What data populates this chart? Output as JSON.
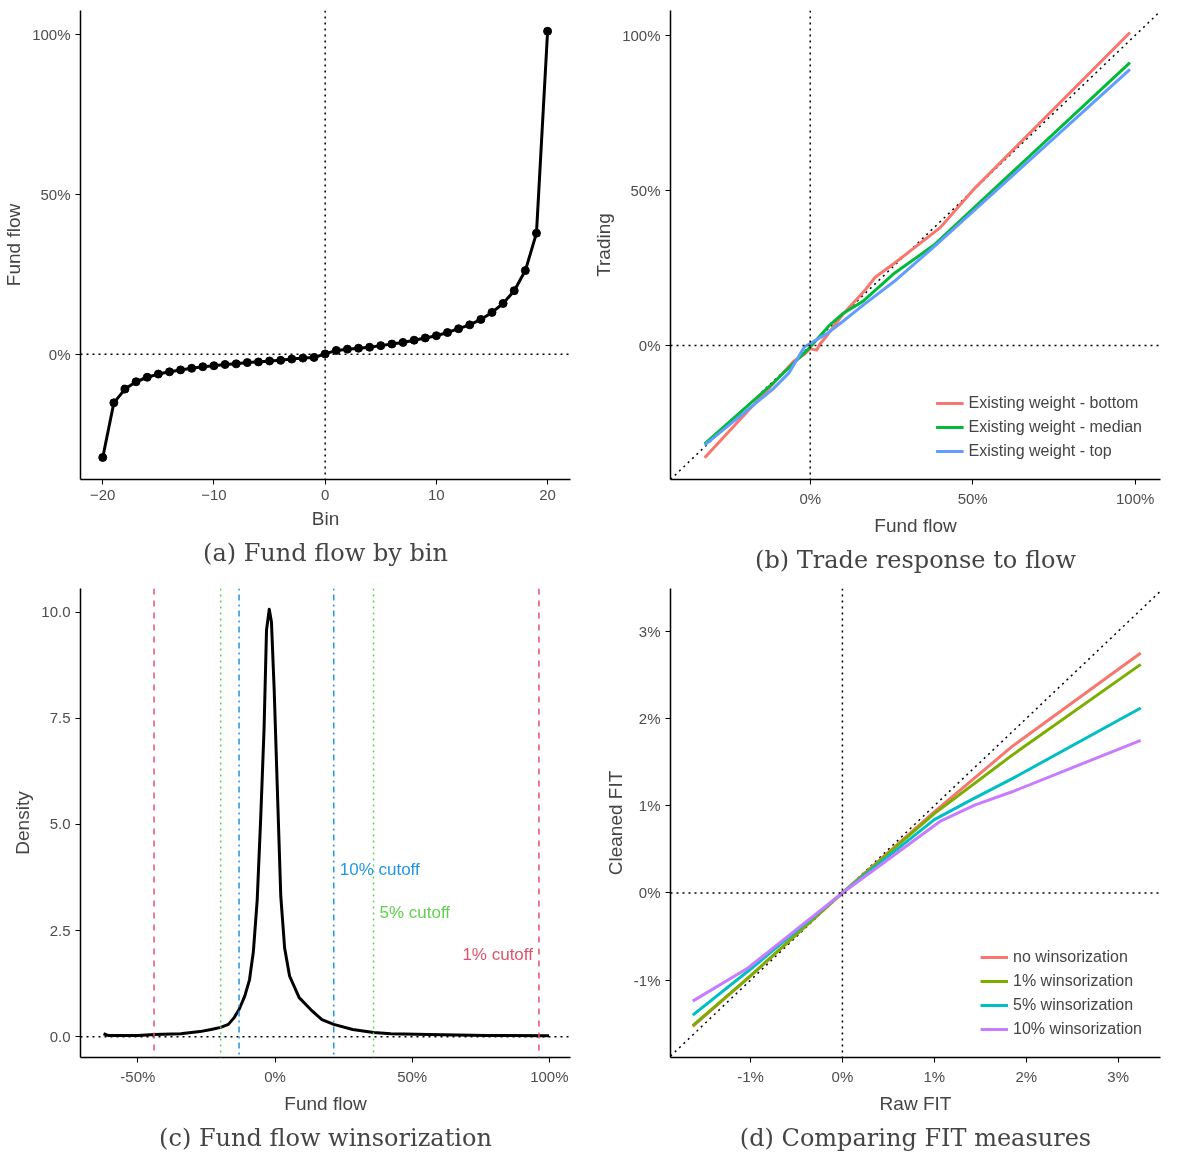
{
  "chart_data": [
    {
      "type": "line",
      "title": "(a) Fund flow by bin",
      "xlabel": "Bin",
      "ylabel": "Fund flow",
      "marker": "circle",
      "grid": false,
      "xlim": [
        -22,
        22.06
      ],
      "ylim": [
        -39.2,
        107.6
      ],
      "xticks": [
        -20,
        -10,
        0,
        10,
        20
      ],
      "yticks": [
        {
          "value": 0,
          "label": "0%"
        },
        {
          "value": 50,
          "label": "50%"
        },
        {
          "value": 100,
          "label": "100%"
        }
      ],
      "x": [
        -20,
        -19,
        -18,
        -17,
        -16,
        -15,
        -14,
        -13,
        -12,
        -11,
        -10,
        -9,
        -8,
        -7,
        -6,
        -5,
        -4,
        -3,
        -2,
        -1,
        0,
        1,
        2,
        3,
        4,
        5,
        6,
        7,
        8,
        9,
        10,
        11,
        12,
        13,
        14,
        15,
        16,
        17,
        18,
        19,
        20
      ],
      "series": [
        {
          "color": "#000000",
          "values": [
            -32.3,
            -15.2,
            -10.9,
            -8.6,
            -7.2,
            -6.2,
            -5.5,
            -4.9,
            -4.4,
            -3.9,
            -3.6,
            -3.2,
            -3.0,
            -2.6,
            -2.4,
            -2.1,
            -1.9,
            -1.5,
            -1.2,
            -1.0,
            0.1,
            1.2,
            1.6,
            1.9,
            2.2,
            2.7,
            3.2,
            3.7,
            4.4,
            5.1,
            5.8,
            6.8,
            8.0,
            9.2,
            10.9,
            13.1,
            15.9,
            19.9,
            26.2,
            37.9,
            101.1
          ]
        }
      ],
      "ref_lines": [
        {
          "axis": "x",
          "value": 0,
          "color": "#000000",
          "line_style": "dotted"
        },
        {
          "axis": "y",
          "value": 0,
          "color": "#000000",
          "line_style": "dotted"
        }
      ]
    },
    {
      "type": "line",
      "title": "(b) Trade response to flow",
      "xlabel": "Fund flow",
      "ylabel": "Trading",
      "grid": false,
      "legend": "bottom right",
      "xlim": [
        -43,
        107.8
      ],
      "ylim": [
        -43.2,
        108
      ],
      "xticks": [
        {
          "value": 0,
          "label": "0%"
        },
        {
          "value": 50,
          "label": "50%"
        },
        {
          "value": 100,
          "label": "100%"
        }
      ],
      "yticks": [
        {
          "value": 0,
          "label": "0%"
        },
        {
          "value": 50,
          "label": "50%"
        },
        {
          "value": 100,
          "label": "100%"
        }
      ],
      "series": [
        {
          "color": "#000000",
          "line_style": "dotted",
          "x": [
            -43,
            107.8
          ],
          "values": [
            -43.2,
            107.8
          ]
        },
        {
          "name": "Existing weight - bottom",
          "color": "#f8766d",
          "x": [
            -32.5,
            -12,
            -5,
            -2,
            0,
            2,
            3,
            5,
            10,
            17,
            20,
            25.9,
            40,
            50,
            98.4
          ],
          "values": [
            -36.2,
            -13,
            -5,
            -3,
            -1,
            -1.5,
            0.5,
            3,
            10,
            18,
            22,
            26.5,
            38,
            50,
            100.9
          ]
        },
        {
          "name": "Existing weight - median",
          "color": "#00ba38",
          "x": [
            -32.5,
            -11.4,
            0,
            6,
            10.2,
            16.3,
            25.9,
            38,
            98.4
          ],
          "values": [
            -31.7,
            -12.1,
            -0.5,
            6.6,
            10.4,
            14.3,
            23.3,
            32.3,
            91.2
          ]
        },
        {
          "name": "Existing weight - top",
          "color": "#619cff",
          "x": [
            -32.5,
            -17.5,
            -11.4,
            -6.6,
            -1.8,
            5.4,
            10.2,
            16.3,
            25.9,
            37.3,
            98.4
          ],
          "values": [
            -32.1,
            -19.2,
            -14.0,
            -8.9,
            -0.5,
            4.0,
            7.9,
            13.0,
            20.7,
            31.1,
            89.0
          ]
        }
      ],
      "ref_lines": [
        {
          "axis": "x",
          "value": 0,
          "color": "#000000",
          "line_style": "dotted"
        },
        {
          "axis": "y",
          "value": 0,
          "color": "#000000",
          "line_style": "dotted"
        }
      ]
    },
    {
      "type": "line",
      "title": "(c) Fund flow winsorization",
      "xlabel": "Fund flow",
      "ylabel": "Density",
      "grid": false,
      "xlim": [
        -70.9,
        107.7
      ],
      "ylim": [
        -0.49,
        10.56
      ],
      "xticks": [
        {
          "value": -50,
          "label": "-50%"
        },
        {
          "value": 0,
          "label": "0%"
        },
        {
          "value": 50,
          "label": "50%"
        },
        {
          "value": 100,
          "label": "100%"
        }
      ],
      "yticks": [
        {
          "value": 0,
          "label": "0.0"
        },
        {
          "value": 2.5,
          "label": "2.5"
        },
        {
          "value": 5,
          "label": "5.0"
        },
        {
          "value": 7.5,
          "label": "7.5"
        },
        {
          "value": 10,
          "label": "10.0"
        }
      ],
      "series": [
        {
          "color": "#000000",
          "x": [
            -62.5,
            -60.9,
            -50,
            -44,
            -34.4,
            -27.4,
            -23.3,
            -19.8,
            -17,
            -14.9,
            -13.1,
            -11,
            -9.3,
            -7.9,
            -6.5,
            -5.2,
            -4.0,
            -3.1,
            -2.1,
            -1.3,
            -0.3,
            0.8,
            2.1,
            3.5,
            5.3,
            8.8,
            13.0,
            17.1,
            21.4,
            28.3,
            35.9,
            42.2,
            56.1,
            77.0,
            99.9
          ],
          "values": [
            0.07,
            0.03,
            0.03,
            0.05,
            0.07,
            0.12,
            0.17,
            0.22,
            0.29,
            0.45,
            0.64,
            0.96,
            1.34,
            2.0,
            3.21,
            5.18,
            7.24,
            9.58,
            10.07,
            9.77,
            8.17,
            5.93,
            3.31,
            2.09,
            1.43,
            0.92,
            0.64,
            0.4,
            0.29,
            0.17,
            0.1,
            0.07,
            0.05,
            0.03,
            0.02
          ]
        }
      ],
      "ref_lines": [
        {
          "axis": "y",
          "value": 0,
          "color": "#000000",
          "line_style": "dotted"
        },
        {
          "axis": "x",
          "value": -44.1,
          "color": "#df536b",
          "line_style": "dashed"
        },
        {
          "axis": "x",
          "value": 96.2,
          "color": "#df536b",
          "line_style": "dashed",
          "label": "1% cutoff"
        },
        {
          "axis": "x",
          "value": -19.8,
          "color": "#61d04f",
          "line_style": "dotted"
        },
        {
          "axis": "x",
          "value": 35.9,
          "color": "#61d04f",
          "line_style": "dotted",
          "label": "5% cutoff"
        },
        {
          "axis": "x",
          "value": -13.1,
          "color": "#2297e6",
          "line_style": "dotdash"
        },
        {
          "axis": "x",
          "value": 21.4,
          "color": "#2297e6",
          "line_style": "dotdash",
          "label": "10% cutoff"
        }
      ]
    },
    {
      "type": "line",
      "title": "(d) Comparing FIT measures",
      "xlabel": "Raw FIT",
      "ylabel": "Cleaned FIT",
      "grid": false,
      "legend": "bottom right",
      "xlim": [
        -1.87,
        3.46
      ],
      "ylim": [
        -1.886,
        3.49
      ],
      "xticks": [
        {
          "value": -1,
          "label": "-1%"
        },
        {
          "value": 0,
          "label": "0%"
        },
        {
          "value": 1,
          "label": "1%"
        },
        {
          "value": 2,
          "label": "2%"
        },
        {
          "value": 3,
          "label": "3%"
        }
      ],
      "yticks": [
        {
          "value": -1,
          "label": "-1%"
        },
        {
          "value": 0,
          "label": "0%"
        },
        {
          "value": 1,
          "label": "1%"
        },
        {
          "value": 2,
          "label": "2%"
        },
        {
          "value": 3,
          "label": "3%"
        }
      ],
      "series": [
        {
          "color": "#000000",
          "line_style": "dotted",
          "x": [
            -1.87,
            3.46
          ],
          "values": [
            -1.87,
            3.46
          ]
        },
        {
          "name": "no winsorization",
          "color": "#f8766d",
          "x": [
            -1.628,
            -1,
            0,
            1,
            1.847,
            3.245
          ],
          "values": [
            -1.53,
            -0.95,
            0,
            0.93,
            1.68,
            2.75
          ]
        },
        {
          "name": "1% winsorization",
          "color": "#7cae00",
          "x": [
            -1.628,
            -1,
            0,
            1,
            1.847,
            3.245
          ],
          "values": [
            -1.52,
            -0.95,
            0,
            0.91,
            1.58,
            2.62
          ]
        },
        {
          "name": "5% winsorization",
          "color": "#00bfc4",
          "x": [
            -1.628,
            -1.008,
            0,
            1,
            1.406,
            1.847,
            3.245
          ],
          "values": [
            -1.4,
            -0.88,
            0,
            0.84,
            1.07,
            1.31,
            2.12
          ]
        },
        {
          "name": "10% winsorization",
          "color": "#c77cff",
          "x": [
            -1.628,
            -1.027,
            0,
            1.061,
            1.444,
            1.847,
            3.245
          ],
          "values": [
            -1.24,
            -0.86,
            0,
            0.82,
            1.01,
            1.16,
            1.75
          ]
        }
      ],
      "ref_lines": [
        {
          "axis": "x",
          "value": 0,
          "color": "#000000",
          "line_style": "dotted"
        },
        {
          "axis": "y",
          "value": 0,
          "color": "#000000",
          "line_style": "dotted"
        }
      ]
    }
  ]
}
